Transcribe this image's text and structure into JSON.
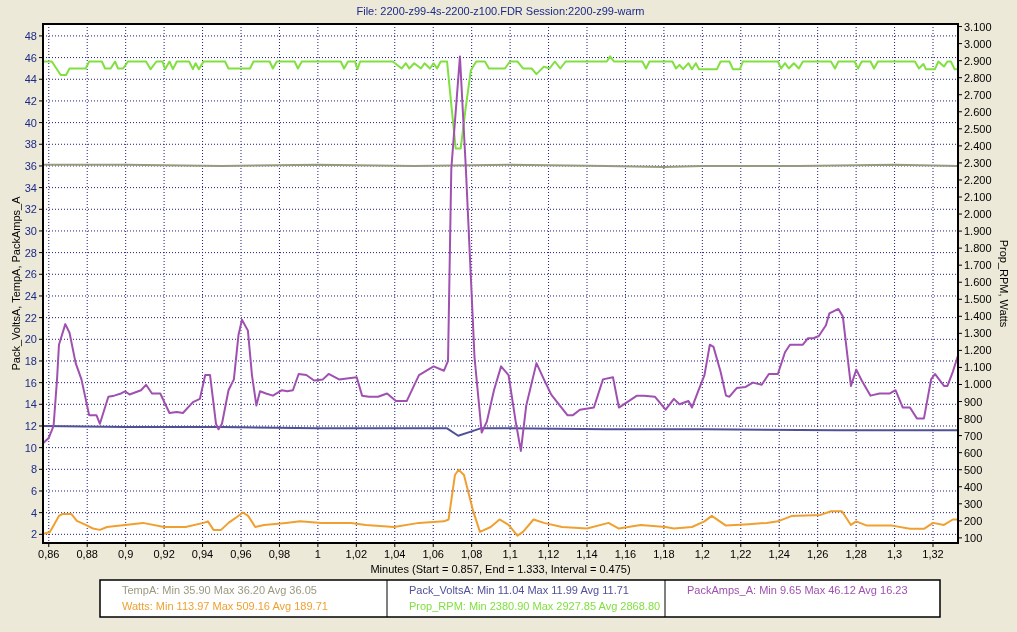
{
  "chart_data": {
    "type": "line",
    "title": "File: 2200-z99-4s-2200-z100.FDR   Session:2200-z99-warm",
    "xlabel": "Minutes (Start = 0.857,  End = 1.333, Interval =  0.475)",
    "ylabel": "Pack_VoltsA, TempA, PackAmps_A",
    "y2label": "Prop_RPM, Watts",
    "xlim": [
      0.857,
      1.333
    ],
    "xticks": [
      {
        "value": 0.86,
        "label": "0,86"
      },
      {
        "value": 0.88,
        "label": "0,88"
      },
      {
        "value": 0.9,
        "label": "0,9"
      },
      {
        "value": 0.92,
        "label": "0,92"
      },
      {
        "value": 0.94,
        "label": "0,94"
      },
      {
        "value": 0.96,
        "label": "0,96"
      },
      {
        "value": 0.98,
        "label": "0,98"
      },
      1,
      {
        "value": 1.02,
        "label": "1,02"
      },
      {
        "value": 1.04,
        "label": "1,04"
      },
      {
        "value": 1.06,
        "label": "1,06"
      },
      {
        "value": 1.08,
        "label": "1,08"
      },
      {
        "value": 1.1,
        "label": "1,1"
      },
      {
        "value": 1.12,
        "label": "1,12"
      },
      {
        "value": 1.14,
        "label": "1,14"
      },
      {
        "value": 1.16,
        "label": "1,16"
      },
      {
        "value": 1.18,
        "label": "1,18"
      },
      {
        "value": 1.2,
        "label": "1,2"
      },
      {
        "value": 1.22,
        "label": "1,22"
      },
      {
        "value": 1.24,
        "label": "1,24"
      },
      {
        "value": 1.26,
        "label": "1,26"
      },
      {
        "value": 1.28,
        "label": "1,28"
      },
      {
        "value": 1.3,
        "label": "1,3"
      },
      {
        "value": 1.32,
        "label": "1,32"
      }
    ],
    "ylim": [
      1.2,
      49.1
    ],
    "yticks": [
      2,
      4,
      6,
      8,
      10,
      12,
      14,
      16,
      18,
      20,
      22,
      24,
      26,
      28,
      30,
      32,
      34,
      36,
      38,
      40,
      42,
      44,
      46,
      48
    ],
    "y2lim": [
      70,
      3115
    ],
    "y2ticks": [
      100,
      200,
      300,
      400,
      500,
      600,
      700,
      800,
      900,
      {
        "value": 1000,
        "label": "1.000"
      },
      {
        "value": 1100,
        "label": "1.100"
      },
      {
        "value": 1200,
        "label": "1.200"
      },
      {
        "value": 1300,
        "label": "1.300"
      },
      {
        "value": 1400,
        "label": "1.400"
      },
      {
        "value": 1500,
        "label": "1.500"
      },
      {
        "value": 1600,
        "label": "1.600"
      },
      {
        "value": 1700,
        "label": "1.700"
      },
      {
        "value": 1800,
        "label": "1.800"
      },
      {
        "value": 1900,
        "label": "1.900"
      },
      {
        "value": 2000,
        "label": "2.000"
      },
      {
        "value": 2100,
        "label": "2.100"
      },
      {
        "value": 2200,
        "label": "2.200"
      },
      {
        "value": 2300,
        "label": "2.300"
      },
      {
        "value": 2400,
        "label": "2.400"
      },
      {
        "value": 2500,
        "label": "2.500"
      },
      {
        "value": 2600,
        "label": "2.600"
      },
      {
        "value": 2700,
        "label": "2.700"
      },
      {
        "value": 2800,
        "label": "2.800"
      },
      {
        "value": 2900,
        "label": "2.900"
      },
      {
        "value": 3000,
        "label": "3.000"
      },
      {
        "value": 3100,
        "label": "3.100"
      }
    ],
    "grid": true,
    "legend": "bottom",
    "annotations": [
      ":  Min 35.90   Max 36.20   Avg 36.05",
      ":  Min 113.97   Max 509.16   Avg 189.71",
      ":  Min 11.04   Max 11.99   Avg 11.71",
      ":  Min 2380.90   Max 2927.85   Avg 2868.80",
      ":  Min 9.65   Max 46.12   Avg 16.23"
    ],
    "series": [
      {
        "name": "TempA",
        "color": "#999980",
        "x": [
          0.857,
          0.88,
          0.9,
          0.95,
          1.0,
          1.05,
          1.1,
          1.15,
          1.18,
          1.2,
          1.25,
          1.3,
          1.333
        ],
        "values": [
          36.1,
          36.1,
          36.1,
          36.0,
          36.1,
          36.0,
          36.1,
          36.0,
          35.9,
          36.0,
          36.0,
          36.1,
          36.0
        ]
      },
      {
        "name": "Watts",
        "color": "#f0a030",
        "axis": "y2",
        "x": [
          0.857,
          0.8606,
          0.8653,
          0.867,
          0.8718,
          0.8746,
          0.8792,
          0.883,
          0.8866,
          0.8903,
          0.8997,
          0.909,
          0.92,
          0.9312,
          0.9405,
          0.9428,
          0.9457,
          0.9496,
          0.9535,
          0.9572,
          0.961,
          0.9637,
          0.9674,
          0.972,
          0.9834,
          0.9907,
          1.0018,
          1.0172,
          1.0249,
          1.0396,
          1.0526,
          1.0656,
          1.068,
          1.0713,
          1.0732,
          1.076,
          1.0807,
          1.0843,
          1.0899,
          1.0945,
          1.0992,
          1.1038,
          1.1067,
          1.1122,
          1.1176,
          1.127,
          1.14,
          1.1512,
          1.1566,
          1.1679,
          1.1809,
          1.1852,
          1.1946,
          1.2011,
          1.2049,
          1.2123,
          1.2242,
          1.2336,
          1.2393,
          1.2466,
          1.2615,
          1.267,
          1.2726,
          1.2773,
          1.28,
          1.2856,
          1.2987,
          1.308,
          1.3153,
          1.32,
          1.3257,
          1.3303,
          1.333
        ],
        "values": [
          123,
          135,
          229,
          240,
          240,
          200,
          176,
          155,
          147,
          164,
          176,
          188,
          164,
          164,
          188,
          197,
          147,
          147,
          188,
          217,
          249,
          229,
          164,
          176,
          188,
          197,
          188,
          188,
          176,
          164,
          188,
          197,
          208,
          469,
          500,
          469,
          260,
          135,
          164,
          208,
          176,
          113,
          135,
          208,
          188,
          164,
          155,
          188,
          155,
          176,
          164,
          155,
          164,
          197,
          229,
          172,
          180,
          188,
          197,
          229,
          235,
          256,
          256,
          176,
          197,
          172,
          172,
          153,
          153,
          188,
          176,
          208,
          208
        ]
      },
      {
        "name": "Pack_VoltsA",
        "color": "#505098",
        "x": [
          0.857,
          0.9,
          0.95,
          1.0,
          1.06,
          1.067,
          1.073,
          1.08,
          1.085,
          1.1,
          1.15,
          1.2,
          1.27,
          1.333
        ],
        "values": [
          12.0,
          11.9,
          11.9,
          11.8,
          11.8,
          11.8,
          11.1,
          11.5,
          11.8,
          11.8,
          11.7,
          11.7,
          11.6,
          11.6
        ]
      },
      {
        "name": "Prop_RPM",
        "color": "#80e040",
        "axis": "y2",
        "x": [
          0.857,
          0.8616,
          0.8662,
          0.869,
          0.8708,
          0.8792,
          0.881,
          0.8876,
          0.8893,
          0.8922,
          0.8945,
          0.896,
          0.8987,
          0.9012,
          0.9106,
          0.913,
          0.916,
          0.9192,
          0.9205,
          0.9228,
          0.9246,
          0.9266,
          0.933,
          0.935,
          0.9364,
          0.9381,
          0.9405,
          0.9517,
          0.9535,
          0.9647,
          0.9665,
          0.9749,
          0.9766,
          0.9786,
          0.9879,
          0.9896,
          0.9916,
          1.0119,
          1.0136,
          1.0157,
          1.0193,
          1.0206,
          1.022,
          1.0389,
          1.0436,
          1.0458,
          1.0475,
          1.0501,
          1.0536,
          1.0555,
          1.0583,
          1.0602,
          1.062,
          1.0639,
          1.0672,
          1.0694,
          1.0717,
          1.0743,
          1.0769,
          1.0796,
          1.0824,
          1.0869,
          1.089,
          1.0973,
          1.0999,
          1.1038,
          1.1067,
          1.1112,
          1.1137,
          1.1176,
          1.1205,
          1.1233,
          1.1261,
          1.1289,
          1.1503,
          1.152,
          1.154,
          1.1688,
          1.1707,
          1.1725,
          1.178,
          1.1844,
          1.1863,
          1.1881,
          1.19,
          1.1928,
          1.1946,
          1.1966,
          1.1983,
          1.2076,
          1.2095,
          1.2141,
          1.2159,
          1.2196,
          1.2211,
          1.2393,
          1.241,
          1.243,
          1.245,
          1.2476,
          1.2502,
          1.2523,
          1.2669,
          1.269,
          1.2708,
          1.2792,
          1.281,
          1.2829,
          1.2875,
          1.2893,
          1.2913,
          1.3106,
          1.3127,
          1.315,
          1.3163,
          1.321,
          1.3228,
          1.3257,
          1.3275,
          1.3293,
          1.3312,
          1.333
        ],
        "values": [
          2895,
          2895,
          2816,
          2816,
          2854,
          2854,
          2895,
          2895,
          2854,
          2854,
          2895,
          2854,
          2854,
          2895,
          2895,
          2850,
          2895,
          2895,
          2850,
          2895,
          2850,
          2895,
          2895,
          2850,
          2885,
          2850,
          2895,
          2895,
          2854,
          2854,
          2895,
          2895,
          2854,
          2895,
          2895,
          2854,
          2895,
          2895,
          2854,
          2895,
          2895,
          2850,
          2895,
          2895,
          2854,
          2885,
          2854,
          2885,
          2854,
          2885,
          2854,
          2885,
          2854,
          2895,
          2895,
          2642,
          2385,
          2385,
          2625,
          2844,
          2895,
          2895,
          2854,
          2854,
          2895,
          2895,
          2854,
          2854,
          2821,
          2865,
          2854,
          2895,
          2854,
          2895,
          2895,
          2925,
          2895,
          2895,
          2854,
          2895,
          2895,
          2895,
          2854,
          2875,
          2850,
          2885,
          2850,
          2885,
          2850,
          2850,
          2895,
          2895,
          2850,
          2850,
          2895,
          2895,
          2854,
          2885,
          2854,
          2885,
          2854,
          2895,
          2895,
          2854,
          2895,
          2895,
          2854,
          2895,
          2895,
          2854,
          2895,
          2895,
          2854,
          2880,
          2850,
          2850,
          2895,
          2865,
          2895,
          2895,
          2850,
          2850
        ]
      },
      {
        "name": "PackAmps_A",
        "color": "#a050b0",
        "x": [
          0.857,
          0.86,
          0.8625,
          0.8643,
          0.8653,
          0.8686,
          0.8708,
          0.874,
          0.877,
          0.881,
          0.8848,
          0.8866,
          0.891,
          0.894,
          0.8976,
          0.8997,
          0.902,
          0.908,
          0.9106,
          0.9137,
          0.918,
          0.9228,
          0.9266,
          0.9298,
          0.935,
          0.9386,
          0.9414,
          0.9439,
          0.947,
          0.9483,
          0.9501,
          0.9535,
          0.9563,
          0.9587,
          0.9605,
          0.9636,
          0.9657,
          0.968,
          0.9699,
          0.973,
          0.9766,
          0.9813,
          0.984,
          0.987,
          0.99,
          0.994,
          0.998,
          1.0026,
          1.0056,
          1.011,
          1.0202,
          1.023,
          1.0266,
          1.0313,
          1.036,
          1.0406,
          1.0462,
          1.0526,
          1.0602,
          1.0656,
          1.0677,
          1.0694,
          1.0739,
          1.077,
          1.0815,
          1.0852,
          1.0879,
          1.0916,
          1.0953,
          1.0992,
          1.1029,
          1.1056,
          1.1084,
          1.1137,
          1.1176,
          1.1214,
          1.1298,
          1.1327,
          1.1363,
          1.1436,
          1.1483,
          1.1535,
          1.1566,
          1.166,
          1.1696,
          1.1753,
          1.1809,
          1.1852,
          1.1881,
          1.1928,
          1.1946,
          1.1974,
          1.2011,
          1.2039,
          1.2058,
          1.2095,
          1.2123,
          1.2141,
          1.2179,
          1.2225,
          1.2263,
          1.2309,
          1.2346,
          1.2393,
          1.243,
          1.2456,
          1.2523,
          1.255,
          1.2578,
          1.2606,
          1.2643,
          1.2661,
          1.2708,
          1.2731,
          1.2773,
          1.2801,
          1.2829,
          1.2875,
          1.2922,
          1.2976,
          1.3005,
          1.3043,
          1.308,
          1.3116,
          1.3153,
          1.319,
          1.321,
          1.3257,
          1.3275,
          1.3303,
          1.333
        ],
        "values": [
          10.4,
          10.9,
          12.0,
          16.3,
          19.5,
          21.4,
          20.6,
          17.8,
          16.3,
          13.0,
          13.0,
          12.2,
          14.7,
          14.8,
          15.0,
          15.2,
          14.9,
          15.3,
          15.8,
          15.0,
          15.0,
          13.2,
          13.3,
          13.2,
          14.2,
          14.5,
          16.7,
          16.7,
          12.2,
          11.7,
          12.2,
          15.3,
          16.3,
          20.4,
          21.8,
          20.8,
          16.7,
          13.9,
          15.2,
          15.0,
          14.8,
          15.3,
          15.2,
          15.3,
          16.8,
          16.7,
          16.2,
          16.3,
          16.8,
          16.3,
          16.5,
          14.8,
          14.7,
          14.7,
          15.0,
          14.3,
          14.3,
          16.7,
          17.5,
          17.1,
          18.0,
          35.7,
          46.1,
          35.7,
          18.3,
          11.4,
          12.4,
          15.3,
          17.5,
          16.7,
          12.4,
          9.7,
          13.9,
          17.8,
          16.3,
          14.9,
          13.0,
          13.0,
          13.5,
          13.7,
          16.3,
          16.5,
          13.7,
          14.8,
          14.8,
          14.7,
          13.5,
          14.5,
          14.0,
          14.3,
          13.7,
          15.0,
          16.7,
          19.5,
          19.3,
          17.0,
          14.8,
          14.7,
          15.5,
          15.6,
          16.0,
          15.8,
          16.8,
          16.8,
          18.8,
          19.5,
          19.5,
          20.1,
          20.1,
          20.3,
          21.3,
          22.4,
          22.8,
          22.1,
          15.7,
          17.2,
          16.2,
          14.8,
          15.0,
          15.0,
          15.3,
          13.7,
          13.7,
          12.7,
          12.7,
          16.3,
          16.8,
          15.7,
          15.7,
          17.0,
          18.5
        ]
      }
    ]
  }
}
